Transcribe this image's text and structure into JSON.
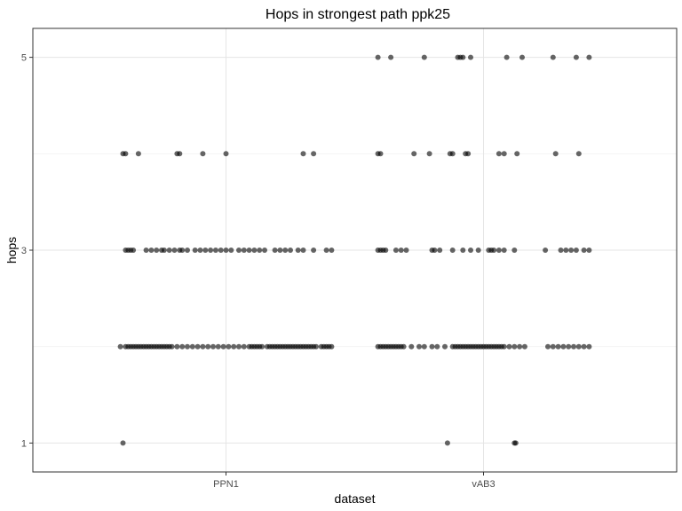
{
  "chart_data": {
    "type": "scatter",
    "title": "Hops in strongest path ppk25",
    "xlabel": "dataset",
    "ylabel": "hops",
    "categories": [
      "PPN1",
      "vAB3"
    ],
    "y_ticks": [
      1,
      3,
      5
    ],
    "ylim": [
      0.7,
      5.3
    ],
    "grid": true,
    "point_color": "#000000",
    "point_opacity": 0.6,
    "series": [
      {
        "category": "PPN1",
        "points": [
          {
            "x": -0.4,
            "y": 1
          },
          {
            "x": -0.41,
            "y": 2
          },
          {
            "x": -0.39,
            "y": 2
          },
          {
            "x": -0.38,
            "y": 2
          },
          {
            "x": -0.37,
            "y": 2
          },
          {
            "x": -0.36,
            "y": 2
          },
          {
            "x": -0.35,
            "y": 2
          },
          {
            "x": -0.34,
            "y": 2
          },
          {
            "x": -0.33,
            "y": 2
          },
          {
            "x": -0.32,
            "y": 2
          },
          {
            "x": -0.31,
            "y": 2
          },
          {
            "x": -0.3,
            "y": 2
          },
          {
            "x": -0.29,
            "y": 2
          },
          {
            "x": -0.28,
            "y": 2
          },
          {
            "x": -0.27,
            "y": 2
          },
          {
            "x": -0.26,
            "y": 2
          },
          {
            "x": -0.25,
            "y": 2
          },
          {
            "x": -0.24,
            "y": 2
          },
          {
            "x": -0.23,
            "y": 2
          },
          {
            "x": -0.22,
            "y": 2
          },
          {
            "x": -0.21,
            "y": 2
          },
          {
            "x": -0.19,
            "y": 2
          },
          {
            "x": -0.17,
            "y": 2
          },
          {
            "x": -0.15,
            "y": 2
          },
          {
            "x": -0.13,
            "y": 2
          },
          {
            "x": -0.11,
            "y": 2
          },
          {
            "x": -0.09,
            "y": 2
          },
          {
            "x": -0.07,
            "y": 2
          },
          {
            "x": -0.05,
            "y": 2
          },
          {
            "x": -0.03,
            "y": 2
          },
          {
            "x": -0.01,
            "y": 2
          },
          {
            "x": 0.01,
            "y": 2
          },
          {
            "x": 0.03,
            "y": 2
          },
          {
            "x": 0.05,
            "y": 2
          },
          {
            "x": 0.07,
            "y": 2
          },
          {
            "x": 0.09,
            "y": 2
          },
          {
            "x": 0.1,
            "y": 2
          },
          {
            "x": 0.11,
            "y": 2
          },
          {
            "x": 0.12,
            "y": 2
          },
          {
            "x": 0.13,
            "y": 2
          },
          {
            "x": 0.14,
            "y": 2
          },
          {
            "x": 0.16,
            "y": 2
          },
          {
            "x": 0.17,
            "y": 2
          },
          {
            "x": 0.18,
            "y": 2
          },
          {
            "x": 0.19,
            "y": 2
          },
          {
            "x": 0.2,
            "y": 2
          },
          {
            "x": 0.21,
            "y": 2
          },
          {
            "x": 0.22,
            "y": 2
          },
          {
            "x": 0.23,
            "y": 2
          },
          {
            "x": 0.24,
            "y": 2
          },
          {
            "x": 0.25,
            "y": 2
          },
          {
            "x": 0.26,
            "y": 2
          },
          {
            "x": 0.27,
            "y": 2
          },
          {
            "x": 0.28,
            "y": 2
          },
          {
            "x": 0.29,
            "y": 2
          },
          {
            "x": 0.3,
            "y": 2
          },
          {
            "x": 0.31,
            "y": 2
          },
          {
            "x": 0.32,
            "y": 2
          },
          {
            "x": 0.33,
            "y": 2
          },
          {
            "x": 0.34,
            "y": 2
          },
          {
            "x": 0.35,
            "y": 2
          },
          {
            "x": 0.37,
            "y": 2
          },
          {
            "x": 0.38,
            "y": 2
          },
          {
            "x": 0.39,
            "y": 2
          },
          {
            "x": 0.4,
            "y": 2
          },
          {
            "x": 0.41,
            "y": 2
          },
          {
            "x": -0.39,
            "y": 3
          },
          {
            "x": -0.38,
            "y": 3
          },
          {
            "x": -0.37,
            "y": 3
          },
          {
            "x": -0.36,
            "y": 3
          },
          {
            "x": -0.31,
            "y": 3
          },
          {
            "x": -0.29,
            "y": 3
          },
          {
            "x": -0.27,
            "y": 3
          },
          {
            "x": -0.25,
            "y": 3
          },
          {
            "x": -0.24,
            "y": 3
          },
          {
            "x": -0.22,
            "y": 3
          },
          {
            "x": -0.2,
            "y": 3
          },
          {
            "x": -0.18,
            "y": 3
          },
          {
            "x": -0.17,
            "y": 3
          },
          {
            "x": -0.15,
            "y": 3
          },
          {
            "x": -0.12,
            "y": 3
          },
          {
            "x": -0.1,
            "y": 3
          },
          {
            "x": -0.08,
            "y": 3
          },
          {
            "x": -0.06,
            "y": 3
          },
          {
            "x": -0.04,
            "y": 3
          },
          {
            "x": -0.02,
            "y": 3
          },
          {
            "x": 0.0,
            "y": 3
          },
          {
            "x": 0.02,
            "y": 3
          },
          {
            "x": 0.05,
            "y": 3
          },
          {
            "x": 0.07,
            "y": 3
          },
          {
            "x": 0.09,
            "y": 3
          },
          {
            "x": 0.11,
            "y": 3
          },
          {
            "x": 0.13,
            "y": 3
          },
          {
            "x": 0.15,
            "y": 3
          },
          {
            "x": 0.19,
            "y": 3
          },
          {
            "x": 0.21,
            "y": 3
          },
          {
            "x": 0.23,
            "y": 3
          },
          {
            "x": 0.25,
            "y": 3
          },
          {
            "x": 0.28,
            "y": 3
          },
          {
            "x": 0.3,
            "y": 3
          },
          {
            "x": 0.34,
            "y": 3
          },
          {
            "x": 0.39,
            "y": 3
          },
          {
            "x": 0.41,
            "y": 3
          },
          {
            "x": -0.4,
            "y": 4
          },
          {
            "x": -0.39,
            "y": 4
          },
          {
            "x": -0.34,
            "y": 4
          },
          {
            "x": -0.19,
            "y": 4
          },
          {
            "x": -0.18,
            "y": 4
          },
          {
            "x": -0.09,
            "y": 4
          },
          {
            "x": 0.0,
            "y": 4
          },
          {
            "x": 0.3,
            "y": 4
          },
          {
            "x": 0.34,
            "y": 4
          }
        ]
      },
      {
        "category": "vAB3",
        "points": [
          {
            "x": -0.14,
            "y": 1
          },
          {
            "x": 0.12,
            "y": 1
          },
          {
            "x": 0.125,
            "y": 1
          },
          {
            "x": -0.41,
            "y": 2
          },
          {
            "x": -0.4,
            "y": 2
          },
          {
            "x": -0.39,
            "y": 2
          },
          {
            "x": -0.38,
            "y": 2
          },
          {
            "x": -0.37,
            "y": 2
          },
          {
            "x": -0.36,
            "y": 2
          },
          {
            "x": -0.35,
            "y": 2
          },
          {
            "x": -0.34,
            "y": 2
          },
          {
            "x": -0.33,
            "y": 2
          },
          {
            "x": -0.32,
            "y": 2
          },
          {
            "x": -0.31,
            "y": 2
          },
          {
            "x": -0.28,
            "y": 2
          },
          {
            "x": -0.25,
            "y": 2
          },
          {
            "x": -0.23,
            "y": 2
          },
          {
            "x": -0.2,
            "y": 2
          },
          {
            "x": -0.18,
            "y": 2
          },
          {
            "x": -0.15,
            "y": 2
          },
          {
            "x": -0.12,
            "y": 2
          },
          {
            "x": -0.11,
            "y": 2
          },
          {
            "x": -0.1,
            "y": 2
          },
          {
            "x": -0.09,
            "y": 2
          },
          {
            "x": -0.08,
            "y": 2
          },
          {
            "x": -0.07,
            "y": 2
          },
          {
            "x": -0.06,
            "y": 2
          },
          {
            "x": -0.05,
            "y": 2
          },
          {
            "x": -0.04,
            "y": 2
          },
          {
            "x": -0.03,
            "y": 2
          },
          {
            "x": -0.02,
            "y": 2
          },
          {
            "x": -0.01,
            "y": 2
          },
          {
            "x": 0.0,
            "y": 2
          },
          {
            "x": 0.01,
            "y": 2
          },
          {
            "x": 0.02,
            "y": 2
          },
          {
            "x": 0.03,
            "y": 2
          },
          {
            "x": 0.04,
            "y": 2
          },
          {
            "x": 0.05,
            "y": 2
          },
          {
            "x": 0.06,
            "y": 2
          },
          {
            "x": 0.07,
            "y": 2
          },
          {
            "x": 0.08,
            "y": 2
          },
          {
            "x": 0.1,
            "y": 2
          },
          {
            "x": 0.12,
            "y": 2
          },
          {
            "x": 0.14,
            "y": 2
          },
          {
            "x": 0.16,
            "y": 2
          },
          {
            "x": 0.25,
            "y": 2
          },
          {
            "x": 0.27,
            "y": 2
          },
          {
            "x": 0.29,
            "y": 2
          },
          {
            "x": 0.31,
            "y": 2
          },
          {
            "x": 0.33,
            "y": 2
          },
          {
            "x": 0.35,
            "y": 2
          },
          {
            "x": 0.37,
            "y": 2
          },
          {
            "x": 0.39,
            "y": 2
          },
          {
            "x": 0.41,
            "y": 2
          },
          {
            "x": -0.41,
            "y": 3
          },
          {
            "x": -0.4,
            "y": 3
          },
          {
            "x": -0.39,
            "y": 3
          },
          {
            "x": -0.38,
            "y": 3
          },
          {
            "x": -0.34,
            "y": 3
          },
          {
            "x": -0.32,
            "y": 3
          },
          {
            "x": -0.3,
            "y": 3
          },
          {
            "x": -0.2,
            "y": 3
          },
          {
            "x": -0.19,
            "y": 3
          },
          {
            "x": -0.17,
            "y": 3
          },
          {
            "x": -0.12,
            "y": 3
          },
          {
            "x": -0.08,
            "y": 3
          },
          {
            "x": -0.05,
            "y": 3
          },
          {
            "x": -0.02,
            "y": 3
          },
          {
            "x": 0.02,
            "y": 3
          },
          {
            "x": 0.03,
            "y": 3
          },
          {
            "x": 0.04,
            "y": 3
          },
          {
            "x": 0.06,
            "y": 3
          },
          {
            "x": 0.08,
            "y": 3
          },
          {
            "x": 0.12,
            "y": 3
          },
          {
            "x": 0.24,
            "y": 3
          },
          {
            "x": 0.3,
            "y": 3
          },
          {
            "x": 0.32,
            "y": 3
          },
          {
            "x": 0.34,
            "y": 3
          },
          {
            "x": 0.36,
            "y": 3
          },
          {
            "x": 0.39,
            "y": 3
          },
          {
            "x": 0.41,
            "y": 3
          },
          {
            "x": -0.41,
            "y": 4
          },
          {
            "x": -0.4,
            "y": 4
          },
          {
            "x": -0.27,
            "y": 4
          },
          {
            "x": -0.21,
            "y": 4
          },
          {
            "x": -0.13,
            "y": 4
          },
          {
            "x": -0.12,
            "y": 4
          },
          {
            "x": -0.07,
            "y": 4
          },
          {
            "x": -0.06,
            "y": 4
          },
          {
            "x": 0.06,
            "y": 4
          },
          {
            "x": 0.08,
            "y": 4
          },
          {
            "x": 0.13,
            "y": 4
          },
          {
            "x": 0.28,
            "y": 4
          },
          {
            "x": 0.37,
            "y": 4
          },
          {
            "x": -0.41,
            "y": 5
          },
          {
            "x": -0.36,
            "y": 5
          },
          {
            "x": -0.23,
            "y": 5
          },
          {
            "x": -0.1,
            "y": 5
          },
          {
            "x": -0.09,
            "y": 5
          },
          {
            "x": -0.08,
            "y": 5
          },
          {
            "x": -0.05,
            "y": 5
          },
          {
            "x": 0.09,
            "y": 5
          },
          {
            "x": 0.15,
            "y": 5
          },
          {
            "x": 0.27,
            "y": 5
          },
          {
            "x": 0.36,
            "y": 5
          },
          {
            "x": 0.41,
            "y": 5
          }
        ]
      }
    ]
  }
}
